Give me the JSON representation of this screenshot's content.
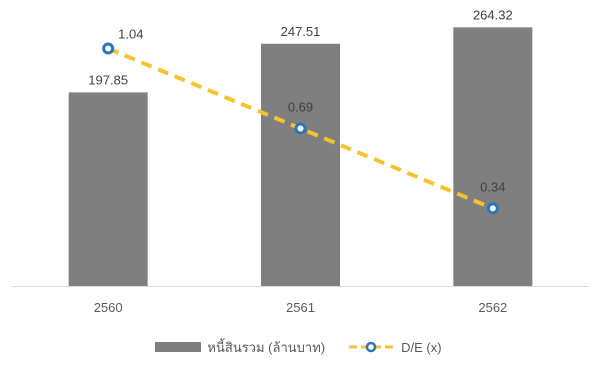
{
  "chart_data": {
    "type": "bar",
    "categories": [
      "2560",
      "2561",
      "2562"
    ],
    "series": [
      {
        "name": "หนี้สินรวม (ล้านบาท)",
        "type": "bar",
        "axis": "left",
        "values": [
          197.85,
          247.51,
          264.32
        ],
        "labels": [
          "197.85",
          "247.51",
          "264.32"
        ],
        "color": "#7f7f7f"
      },
      {
        "name": "D/E (x)",
        "type": "line",
        "axis": "right",
        "line_style": "dashed",
        "marker": "circle",
        "values": [
          1.04,
          0.69,
          0.34
        ],
        "labels": [
          "1.04",
          "0.69",
          "0.34"
        ],
        "color": "#f4c430",
        "marker_color": "#2e75b6"
      }
    ],
    "title": "",
    "xlabel": "",
    "ylabel": "",
    "ylim": [
      0,
      280
    ],
    "y2lim": [
      0,
      1.2
    ],
    "grid": false,
    "axes_shown": false,
    "legend_position": "bottom"
  },
  "legend": {
    "bar_label": "หนี้สินรวม (ล้านบาท)",
    "line_label": "D/E (x)"
  }
}
